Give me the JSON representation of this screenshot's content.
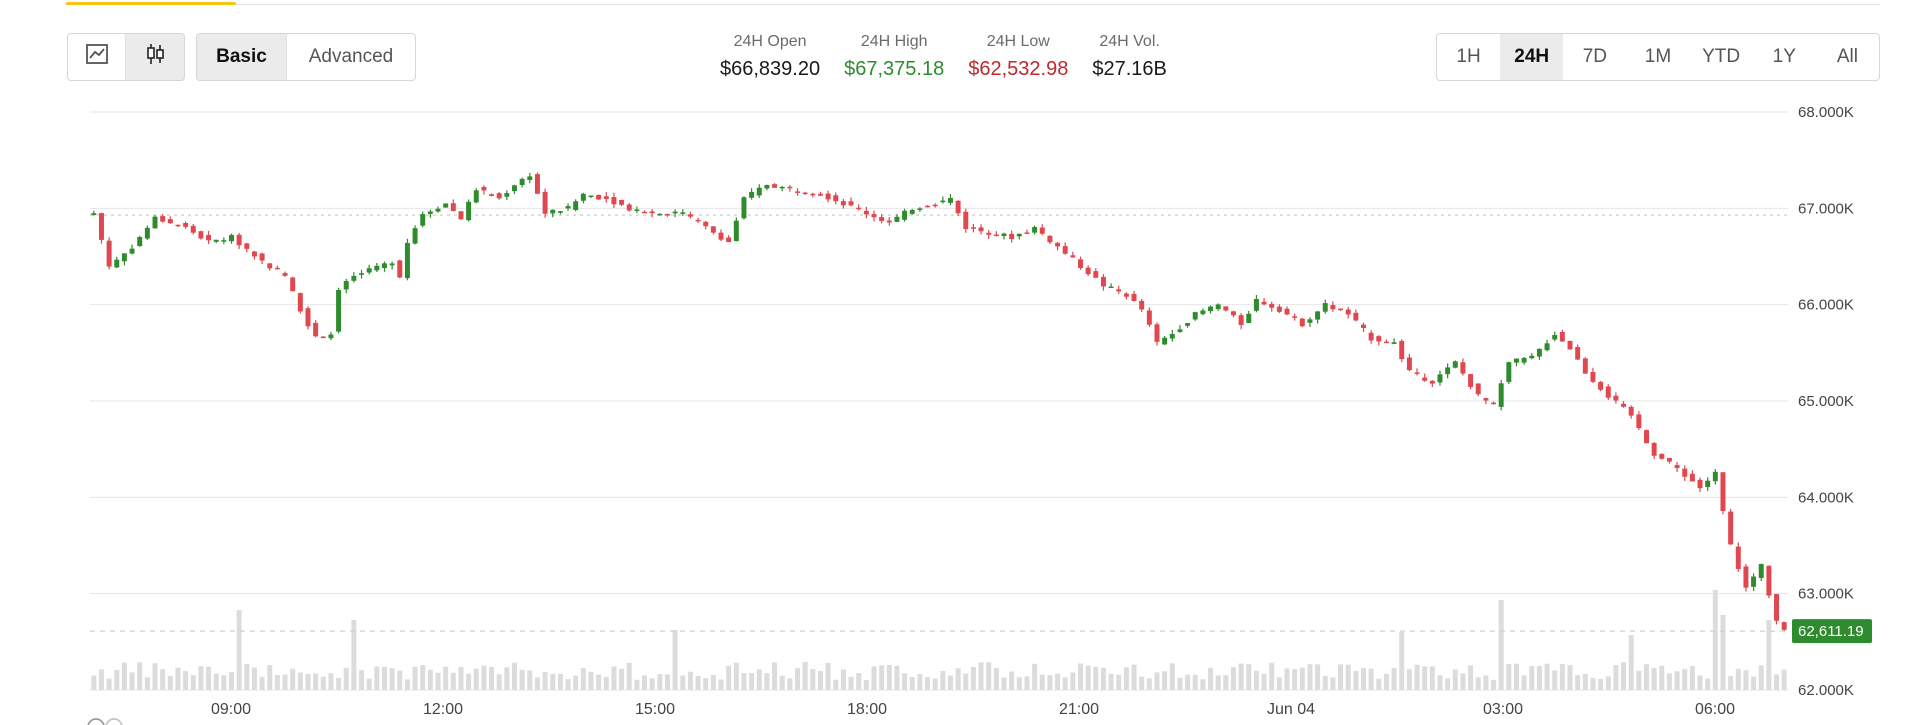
{
  "chart_type_buttons": [
    {
      "name": "line-chart-icon",
      "active": false
    },
    {
      "name": "candlestick-chart-icon",
      "active": true
    }
  ],
  "mode_buttons": [
    {
      "label": "Basic",
      "active": true
    },
    {
      "label": "Advanced",
      "active": false
    }
  ],
  "stats": [
    {
      "label": "24H Open",
      "value": "$66,839.20",
      "tone": "neutral"
    },
    {
      "label": "24H High",
      "value": "$67,375.18",
      "tone": "up"
    },
    {
      "label": "24H Low",
      "value": "$62,532.98",
      "tone": "down"
    },
    {
      "label": "24H Vol.",
      "value": "$27.16B",
      "tone": "neutral"
    }
  ],
  "range_buttons": [
    {
      "label": "1H",
      "active": false
    },
    {
      "label": "24H",
      "active": true
    },
    {
      "label": "7D",
      "active": false
    },
    {
      "label": "1M",
      "active": false
    },
    {
      "label": "YTD",
      "active": false
    },
    {
      "label": "1Y",
      "active": false
    },
    {
      "label": "All",
      "active": false
    }
  ],
  "colors": {
    "up": "#2e8b2e",
    "down": "#e0474f",
    "grid": "#e6e6e6",
    "volume": "#dcdcdc",
    "accent": "#f5c518"
  },
  "chart_data": {
    "type": "candlestick",
    "y_ticks": [
      "68.000K",
      "67.000K",
      "66.000K",
      "65.000K",
      "64.000K",
      "63.000K",
      "62.000K"
    ],
    "ylim": [
      62000,
      68000
    ],
    "x_ticks": [
      "09:00",
      "12:00",
      "15:00",
      "18:00",
      "21:00",
      "Jun 04",
      "03:00",
      "06:00"
    ],
    "reference_price": 66930,
    "current_price": 62611.19,
    "current_price_label": "62,611.19",
    "close_path": [
      [
        0,
        66950
      ],
      [
        2,
        66400
      ],
      [
        5,
        66600
      ],
      [
        8,
        66900
      ],
      [
        12,
        66800
      ],
      [
        15,
        66650
      ],
      [
        18,
        66700
      ],
      [
        22,
        66450
      ],
      [
        25,
        66300
      ],
      [
        27,
        65950
      ],
      [
        29,
        65650
      ],
      [
        31,
        65700
      ],
      [
        32,
        66150
      ],
      [
        34,
        66300
      ],
      [
        37,
        66380
      ],
      [
        39,
        66450
      ],
      [
        40,
        66300
      ],
      [
        41,
        66650
      ],
      [
        43,
        66950
      ],
      [
        46,
        67050
      ],
      [
        48,
        66900
      ],
      [
        50,
        67200
      ],
      [
        53,
        67100
      ],
      [
        55,
        67250
      ],
      [
        57,
        67350
      ],
      [
        59,
        66950
      ],
      [
        62,
        67000
      ],
      [
        64,
        67150
      ],
      [
        67,
        67100
      ],
      [
        70,
        67000
      ],
      [
        73,
        66950
      ],
      [
        77,
        66950
      ],
      [
        80,
        66800
      ],
      [
        83,
        66650
      ],
      [
        85,
        67100
      ],
      [
        88,
        67250
      ],
      [
        91,
        67200
      ],
      [
        95,
        67150
      ],
      [
        98,
        67050
      ],
      [
        101,
        66950
      ],
      [
        104,
        66850
      ],
      [
        107,
        67000
      ],
      [
        110,
        67050
      ],
      [
        112,
        67100
      ],
      [
        114,
        66800
      ],
      [
        117,
        66750
      ],
      [
        120,
        66700
      ],
      [
        123,
        66800
      ],
      [
        126,
        66600
      ],
      [
        129,
        66400
      ],
      [
        132,
        66200
      ],
      [
        135,
        66100
      ],
      [
        137,
        65950
      ],
      [
        139,
        65600
      ],
      [
        141,
        65700
      ],
      [
        144,
        65900
      ],
      [
        147,
        66000
      ],
      [
        150,
        65800
      ],
      [
        152,
        66050
      ],
      [
        155,
        65950
      ],
      [
        158,
        65800
      ],
      [
        161,
        66000
      ],
      [
        164,
        65900
      ],
      [
        167,
        65650
      ],
      [
        170,
        65600
      ],
      [
        172,
        65300
      ],
      [
        175,
        65200
      ],
      [
        178,
        65400
      ],
      [
        181,
        65050
      ],
      [
        183,
        64950
      ],
      [
        185,
        65400
      ],
      [
        188,
        65450
      ],
      [
        191,
        65700
      ],
      [
        193,
        65550
      ],
      [
        195,
        65300
      ],
      [
        198,
        65050
      ],
      [
        201,
        64850
      ],
      [
        204,
        64450
      ],
      [
        207,
        64300
      ],
      [
        210,
        64100
      ],
      [
        212,
        64250
      ],
      [
        214,
        63500
      ],
      [
        216,
        63050
      ],
      [
        218,
        63300
      ],
      [
        220,
        62700
      ],
      [
        221,
        62611
      ]
    ],
    "volume_spikes": {
      "19": 80,
      "34": 70,
      "76": 60,
      "171": 58,
      "184": 90,
      "201": 55,
      "212": 100,
      "213": 75,
      "219": 70
    }
  }
}
